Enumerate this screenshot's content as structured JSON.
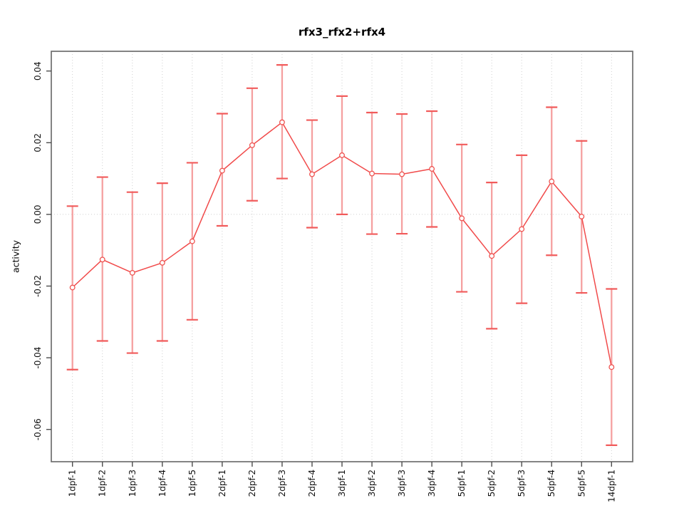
{
  "chart_data": {
    "type": "line",
    "title": "rfx3_rfx2+rfx4",
    "xlabel": "",
    "ylabel": "activity",
    "legend": "none",
    "categories": [
      "1dpf-1",
      "1dpf-2",
      "1dpf-3",
      "1dpf-4",
      "1dpf-5",
      "2dpf-1",
      "2dpf-2",
      "2dpf-3",
      "2dpf-4",
      "3dpf-1",
      "3dpf-2",
      "3dpf-3",
      "3dpf-4",
      "5dpf-1",
      "5dpf-2",
      "5dpf-3",
      "5dpf-4",
      "5dpf-5",
      "14dpf-1"
    ],
    "series": [
      {
        "name": "activity",
        "values": [
          -0.0204,
          -0.0126,
          -0.0163,
          -0.0135,
          -0.0075,
          0.0122,
          0.0193,
          0.0257,
          0.0112,
          0.0165,
          0.0114,
          0.0112,
          0.0127,
          -0.0011,
          -0.0116,
          -0.0041,
          0.0092,
          -0.0006,
          -0.0426
        ],
        "error_upper": [
          0.0023,
          0.0104,
          0.0062,
          0.0087,
          0.0144,
          0.0281,
          0.0352,
          0.0417,
          0.0263,
          0.033,
          0.0284,
          0.028,
          0.0288,
          0.0195,
          0.0089,
          0.0165,
          0.0299,
          0.0205,
          -0.0208
        ],
        "error_lower": [
          -0.0433,
          -0.0353,
          -0.0387,
          -0.0353,
          -0.0294,
          -0.0032,
          0.0038,
          0.01,
          -0.0037,
          0.0,
          -0.0055,
          -0.0054,
          -0.0035,
          -0.0216,
          -0.0319,
          -0.0248,
          -0.0114,
          -0.0219,
          -0.0644
        ]
      }
    ],
    "ylim": [
      -0.069,
      0.0455
    ],
    "yticks": [
      0.04,
      0.02,
      0.0,
      -0.02,
      -0.04,
      -0.06
    ],
    "ytick_labels": [
      "0.04",
      "0.02",
      "0.00",
      "-0.02",
      "-0.04",
      "-0.06"
    ],
    "grid": {
      "vertical_per_category": true,
      "horizontal_zero_line": true,
      "style": "dotted"
    },
    "colors": {
      "line": "#f14b4b",
      "marker_stroke": "#ef5350",
      "marker_fill": "#ffffff",
      "error_bar": "#f5a0a0",
      "error_cap": "#f15b5b",
      "grid": "#cfcfcf",
      "box": "#6e6e6e",
      "tick": "#4d4d4d",
      "text": "#111111",
      "background": "#ffffff"
    }
  }
}
